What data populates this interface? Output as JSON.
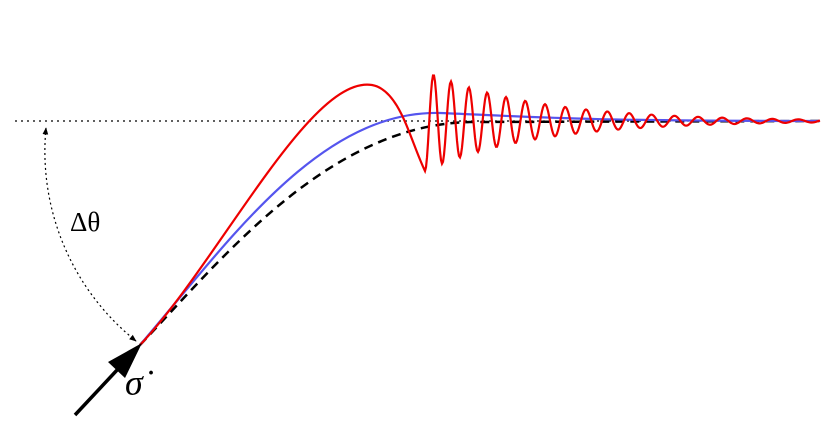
{
  "labels": {
    "angle": "Δθ",
    "rate": "σ̇"
  }
}
